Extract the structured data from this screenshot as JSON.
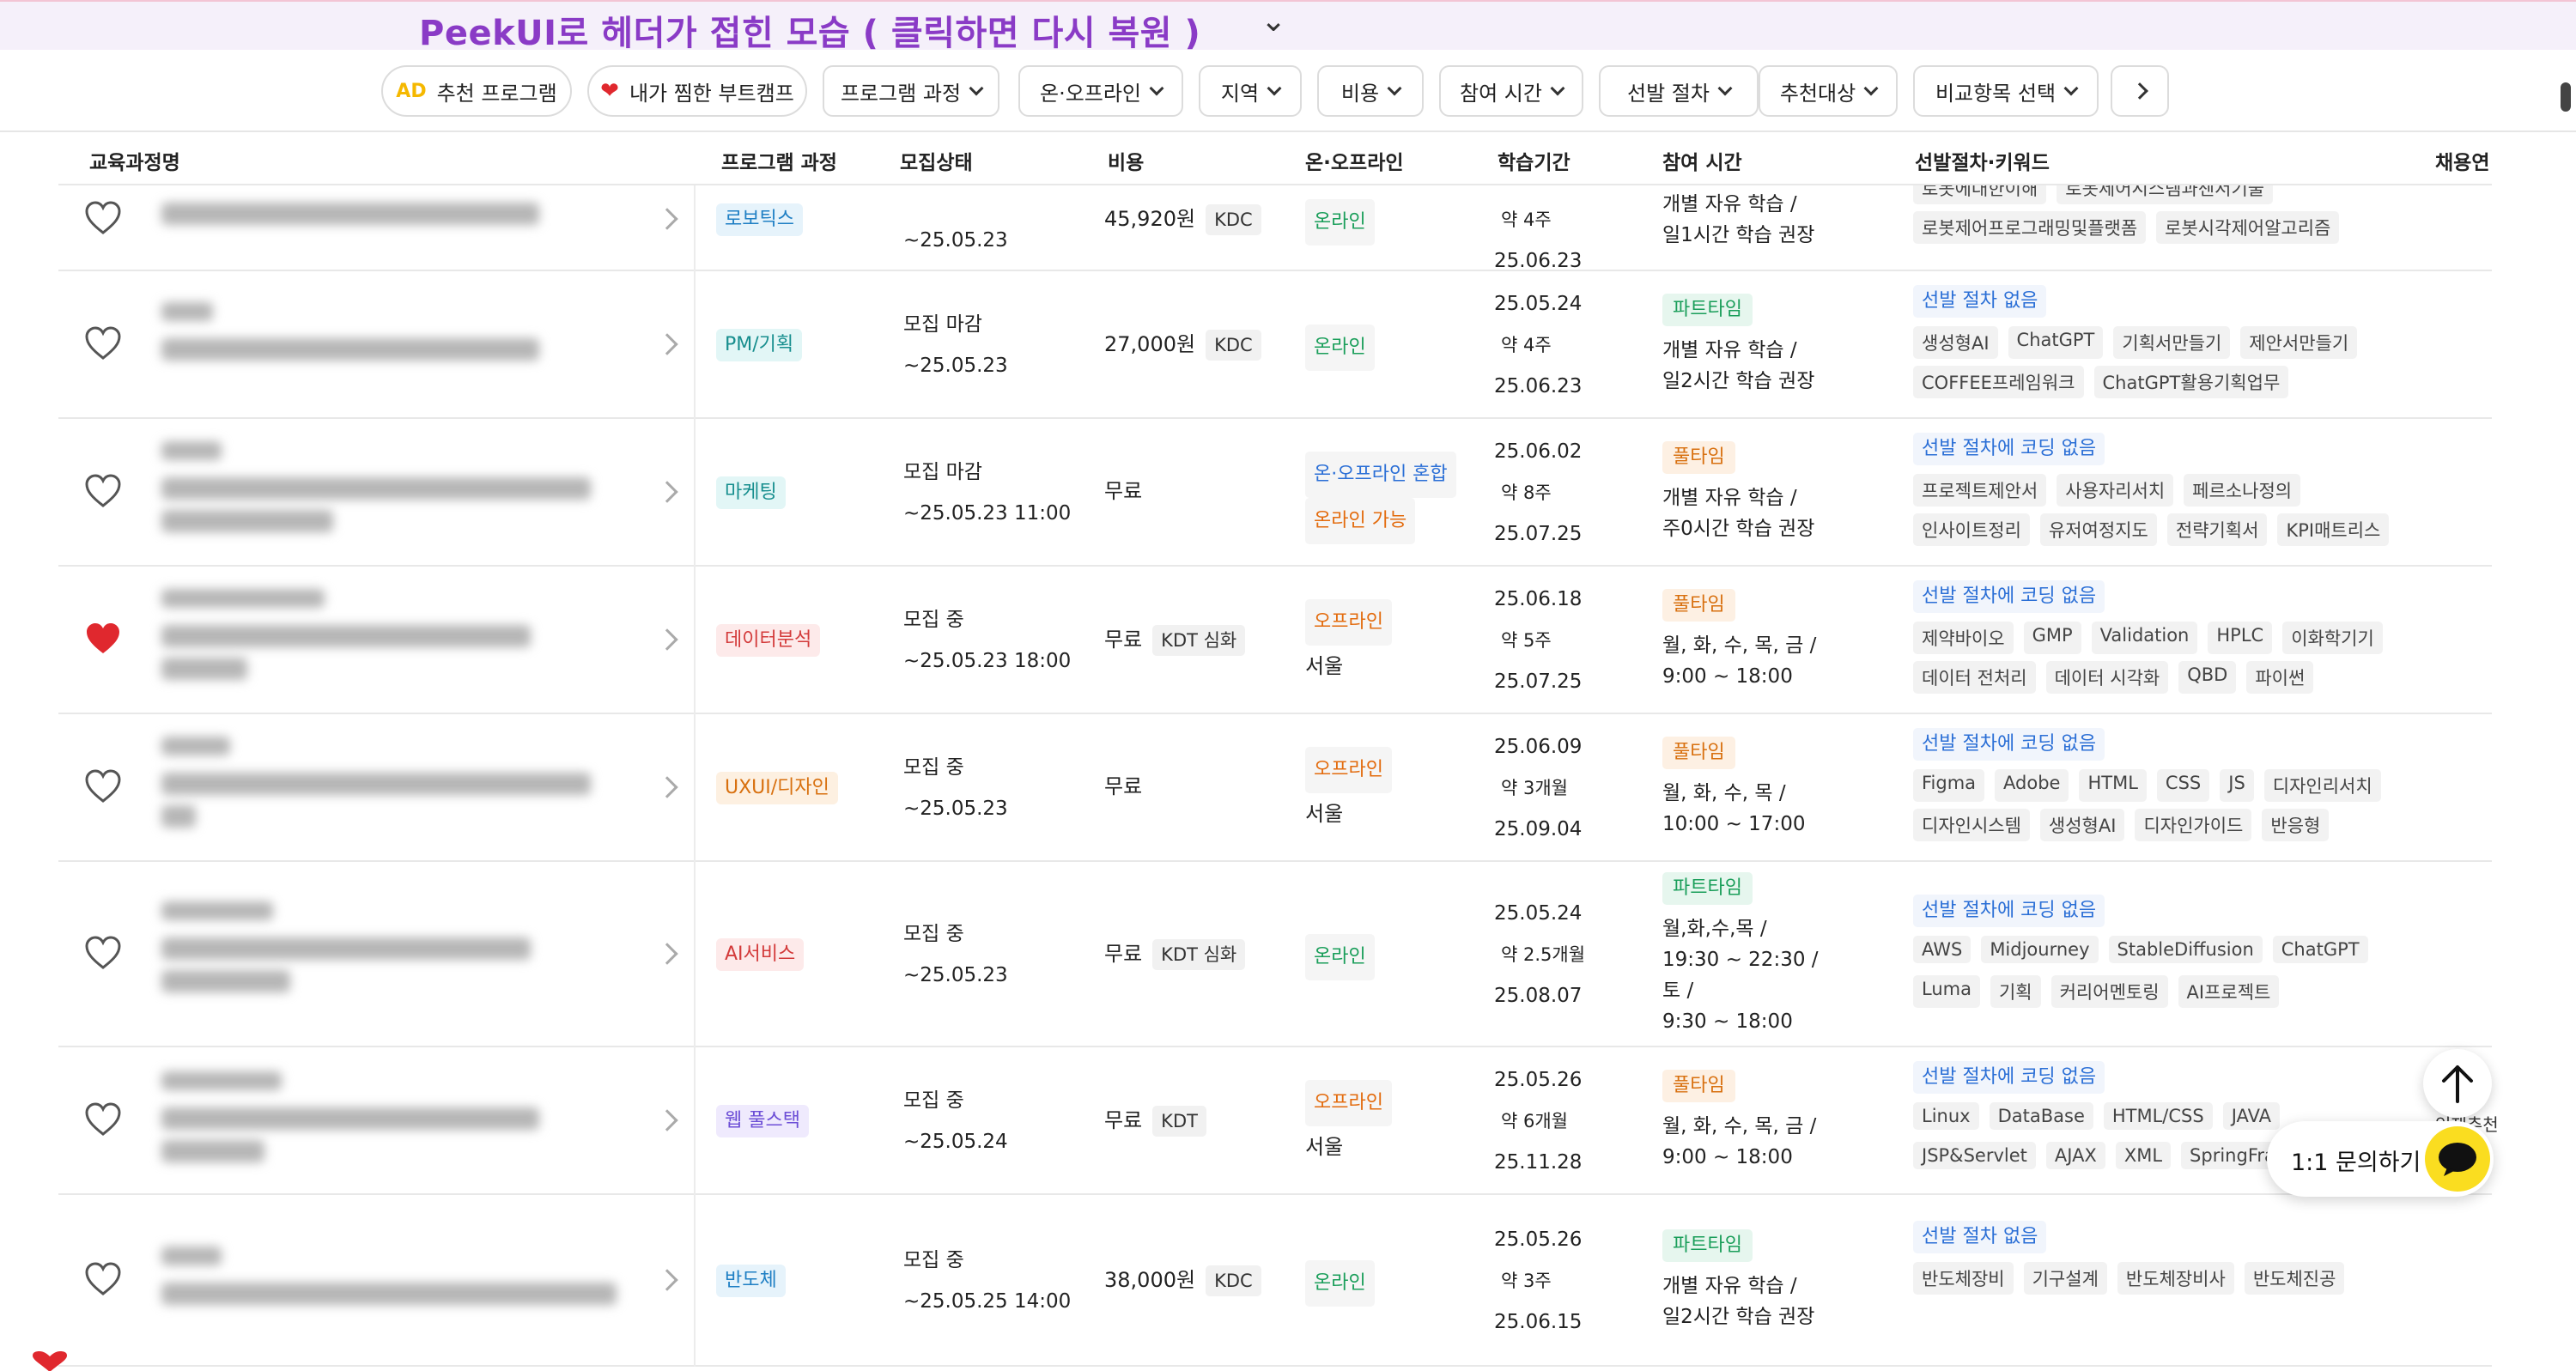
{
  "banner": {
    "text": "PeekUI로 헤더가 접힌 모습 ( 클릭하면 다시 복원 )"
  },
  "filters": [
    {
      "label": "추천 프로그램",
      "badge": "AD"
    },
    {
      "label": "내가 찜한 부트캠프",
      "icon": "heart-icon"
    },
    {
      "label": "프로그램 과정"
    },
    {
      "label": "온·오프라인"
    },
    {
      "label": "지역"
    },
    {
      "label": "비용"
    },
    {
      "label": "참여 시간"
    },
    {
      "label": "선발 절차"
    },
    {
      "label": "추천대상"
    },
    {
      "label": "비교항목 선택"
    }
  ],
  "columns": {
    "name": "교육과정명",
    "program": "프로그램 과정",
    "status": "모집상태",
    "cost": "비용",
    "mode": "온·오프라인",
    "period": "학습기간",
    "time": "참여 시간",
    "keywords": "선발절차·키워드",
    "hiring": "채용연"
  },
  "rows": [
    {
      "favorited": false,
      "category": "로보틱스",
      "status": "",
      "deadline": "~25.05.23",
      "cost": "45,920원",
      "cost_tag": "KDC",
      "mode": "온라인",
      "mode_sub": "",
      "start": "",
      "duration": "약 4주",
      "end": "25.06.23",
      "time_type": "",
      "time_lines": [
        "개별 자유 학습 /",
        "일1시간 학습 권장"
      ],
      "selection": "",
      "kw1": [
        "로봇에대한이해",
        "로봇제어시스템과센서기술"
      ],
      "kw2": [
        "로봇제어프로그래밍및플랫폼",
        "로봇시각제어알고리즘"
      ]
    },
    {
      "favorited": false,
      "category": "PM/기획",
      "status": "모집 마감",
      "deadline": "~25.05.23",
      "cost": "27,000원",
      "cost_tag": "KDC",
      "mode": "온라인",
      "mode_sub": "",
      "start": "25.05.24",
      "duration": "약 4주",
      "end": "25.06.23",
      "time_type": "파트타임",
      "time_lines": [
        "개별 자유 학습 /",
        "일2시간 학습 권장"
      ],
      "selection": "선발 절차 없음",
      "kw1": [
        "생성형AI",
        "ChatGPT",
        "기획서만들기",
        "제안서만들기"
      ],
      "kw2": [
        "COFFEE프레임워크",
        "ChatGPT활용기획업무"
      ]
    },
    {
      "favorited": false,
      "category": "마케팅",
      "status": "모집 마감",
      "deadline": "~25.05.23 11:00",
      "cost": "무료",
      "cost_tag": "",
      "mode": "온·오프라인 혼합",
      "mode_sub": "온라인 가능",
      "start": "25.06.02",
      "duration": "약 8주",
      "end": "25.07.25",
      "time_type": "풀타임",
      "time_lines": [
        "개별 자유 학습 /",
        "주0시간 학습 권장"
      ],
      "selection": "선발 절차에 코딩 없음",
      "kw1": [
        "프로젝트제안서",
        "사용자리서치",
        "페르소나정의"
      ],
      "kw2": [
        "인사이트정리",
        "유저여정지도",
        "전략기획서",
        "KPI매트리스"
      ]
    },
    {
      "favorited": true,
      "category": "데이터분석",
      "status": "모집 중",
      "deadline": "~25.05.23 18:00",
      "cost": "무료",
      "cost_tag": "KDT 심화",
      "mode": "오프라인",
      "mode_sub": "서울",
      "start": "25.06.18",
      "duration": "약 5주",
      "end": "25.07.25",
      "time_type": "풀타임",
      "time_lines": [
        "월, 화, 수, 목, 금 /",
        "9:00 ~ 18:00"
      ],
      "selection": "선발 절차에 코딩 없음",
      "kw1": [
        "제약바이오",
        "GMP",
        "Validation",
        "HPLC",
        "이화학기기"
      ],
      "kw2": [
        "데이터 전처리",
        "데이터 시각화",
        "QBD",
        "파이썬"
      ]
    },
    {
      "favorited": false,
      "category": "UXUI/디자인",
      "status": "모집 중",
      "deadline": "~25.05.23",
      "cost": "무료",
      "cost_tag": "",
      "mode": "오프라인",
      "mode_sub": "서울",
      "start": "25.06.09",
      "duration": "약 3개월",
      "end": "25.09.04",
      "time_type": "풀타임",
      "time_lines": [
        "월, 화, 수, 목 /",
        "10:00 ~ 17:00"
      ],
      "selection": "선발 절차에 코딩 없음",
      "kw1": [
        "Figma",
        "Adobe",
        "HTML",
        "CSS",
        "JS",
        "디자인리서치"
      ],
      "kw2": [
        "디자인시스템",
        "생성형AI",
        "디자인가이드",
        "반응형"
      ]
    },
    {
      "favorited": false,
      "category": "AI서비스",
      "status": "모집 중",
      "deadline": "~25.05.23",
      "cost": "무료",
      "cost_tag": "KDT 심화",
      "mode": "온라인",
      "mode_sub": "",
      "start": "25.05.24",
      "duration": "약 2.5개월",
      "end": "25.08.07",
      "time_type": "파트타임",
      "time_lines": [
        "월,화,수,목 /",
        "19:30 ~ 22:30 /",
        "토 /",
        "9:30 ~ 18:00"
      ],
      "selection": "선발 절차에 코딩 없음",
      "kw1": [
        "AWS",
        "Midjourney",
        "StableDiffusion",
        "ChatGPT"
      ],
      "kw2": [
        "Luma",
        "기획",
        "커리어멘토링",
        "AI프로젝트"
      ]
    },
    {
      "favorited": false,
      "category": "웹 풀스택",
      "status": "모집 중",
      "deadline": "~25.05.24",
      "cost": "무료",
      "cost_tag": "KDT",
      "mode": "오프라인",
      "mode_sub": "서울",
      "start": "25.05.26",
      "duration": "약 6개월",
      "end": "25.11.28",
      "time_type": "풀타임",
      "time_lines": [
        "월, 화, 수, 목, 금 /",
        "9:00 ~ 18:00"
      ],
      "selection": "선발 절차에 코딩 없음",
      "kw1": [
        "Linux",
        "DataBase",
        "HTML/CSS",
        "JAVA"
      ],
      "kw2": [
        "JSP&Servlet",
        "AJAX",
        "XML",
        "SpringFram"
      ]
    },
    {
      "favorited": false,
      "category": "반도체",
      "status": "모집 중",
      "deadline": "~25.05.25 14:00",
      "cost": "38,000원",
      "cost_tag": "KDC",
      "mode": "온라인",
      "mode_sub": "",
      "start": "25.05.26",
      "duration": "약 3주",
      "end": "25.06.15",
      "time_type": "파트타임",
      "time_lines": [
        "개별 자유 학습 /",
        "일2시간 학습 권장"
      ],
      "selection": "선발 절차 없음",
      "kw1": [
        "반도체장비",
        "기구설계",
        "반도체장비사",
        "반도체진공"
      ],
      "kw2": []
    }
  ],
  "floating": {
    "inquiry": "1:1 문의하기",
    "side_text": "인재추천"
  },
  "colors": {
    "banner_text": "#8a3bc6",
    "favorite": "#e0282e",
    "inquiry_bubble": "#fadd20"
  }
}
